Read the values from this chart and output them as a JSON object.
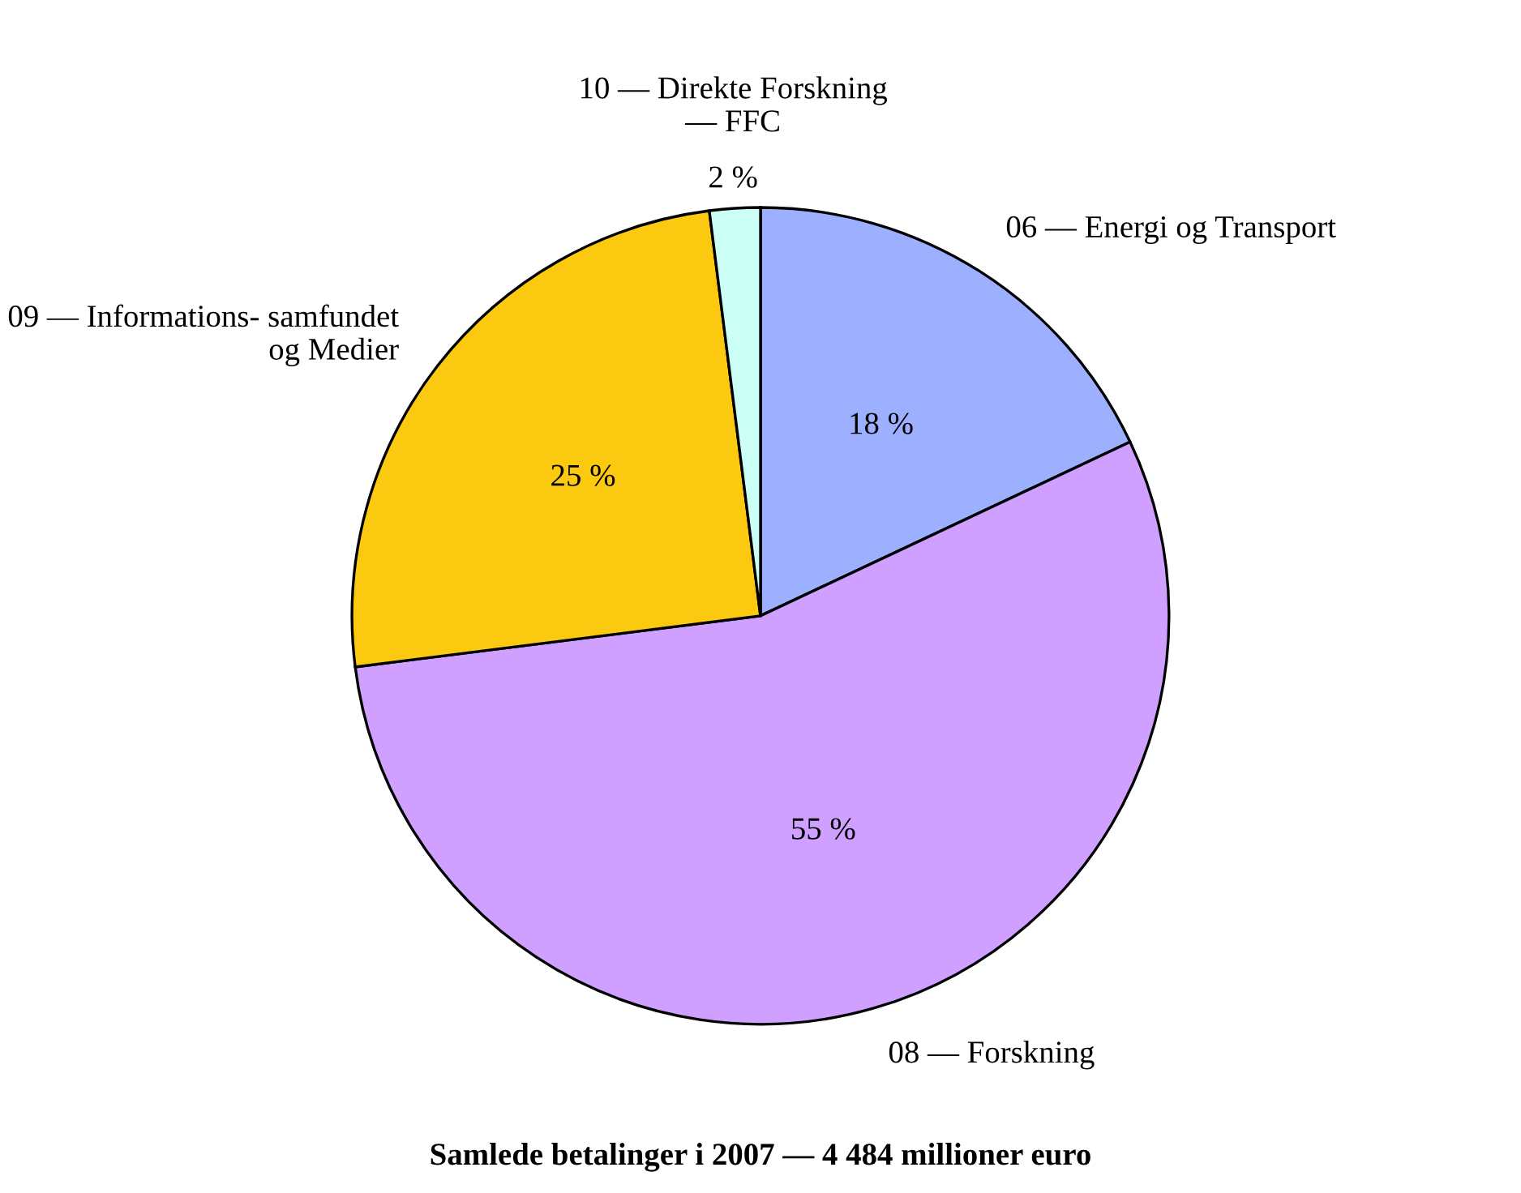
{
  "chart_data": {
    "type": "pie",
    "title": "Samlede betalinger i 2007 — 4 484 millioner euro",
    "categories": [
      "06 — Energi og Transport",
      "08 — Forskning",
      "09 — Informations- samfundet\nog Medier",
      "10 — Direkte Forskning\n— FFC"
    ],
    "values": [
      18,
      55,
      25,
      2
    ],
    "colors": [
      "#9db0ff",
      "#cfa0ff",
      "#fbc90f",
      "#ccfff6"
    ],
    "value_labels": [
      "18 %",
      "55 %",
      "25 %",
      "2 %"
    ]
  }
}
